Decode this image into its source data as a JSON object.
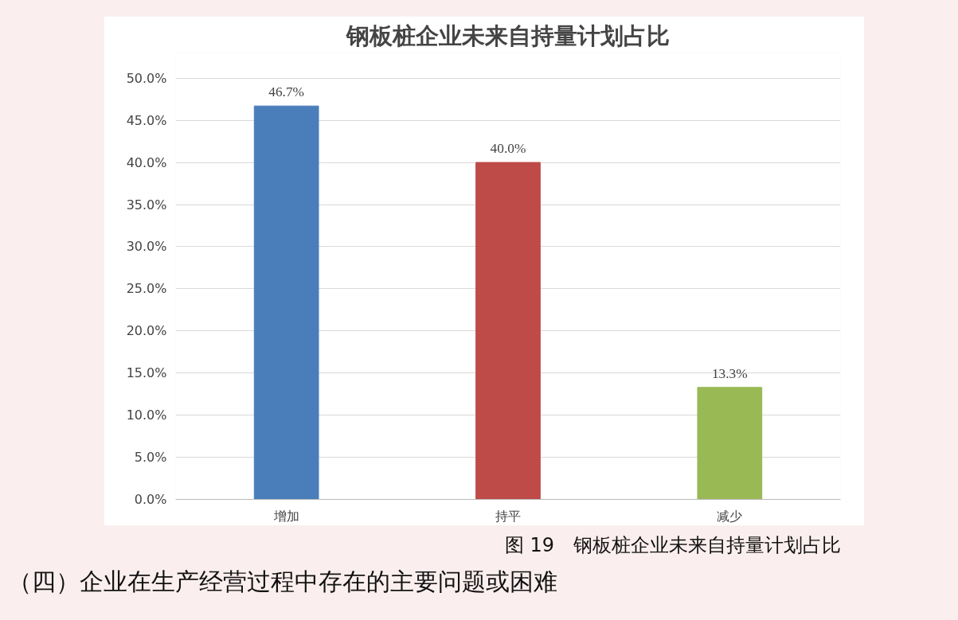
{
  "chart_data": {
    "type": "bar",
    "title": "钢板桩企业未来自持量计划占比",
    "categories": [
      "增加",
      "持平",
      "减少"
    ],
    "values": [
      46.7,
      40.0,
      13.3
    ],
    "colors": [
      "#4a7ebb",
      "#be4b48",
      "#98b954"
    ],
    "value_labels": [
      "46.7%",
      "40.0%",
      "13.3%"
    ],
    "ylim": [
      0,
      50
    ],
    "yticks": [
      {
        "value": 0,
        "label": "0.0%"
      },
      {
        "value": 5,
        "label": "5.0%"
      },
      {
        "value": 10,
        "label": "10.0%"
      },
      {
        "value": 15,
        "label": "15.0%"
      },
      {
        "value": 20,
        "label": "20.0%"
      },
      {
        "value": 25,
        "label": "25.0%"
      },
      {
        "value": 30,
        "label": "30.0%"
      },
      {
        "value": 35,
        "label": "35.0%"
      },
      {
        "value": 40,
        "label": "40.0%"
      },
      {
        "value": 45,
        "label": "45.0%"
      },
      {
        "value": 50,
        "label": "50.0%"
      }
    ],
    "grid": "y",
    "annotations": [
      "图 19　钢板桩企业未来自持量计划占比",
      "（四）企业在生产经营过程中存在的主要问题或困难"
    ]
  }
}
